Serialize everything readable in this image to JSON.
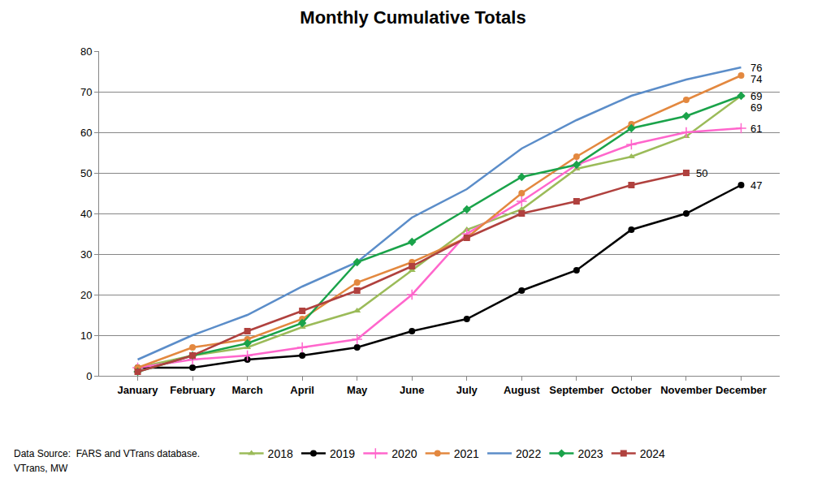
{
  "chart_data": {
    "type": "line",
    "title": "Monthly Cumulative Totals",
    "categories": [
      "January",
      "February",
      "March",
      "April",
      "May",
      "June",
      "July",
      "August",
      "September",
      "October",
      "November",
      "December"
    ],
    "series": [
      {
        "name": "2018",
        "color": "#9BBB59",
        "marker": "triangle-up",
        "values": [
          2,
          5,
          7,
          12,
          16,
          26,
          36,
          41,
          51,
          54,
          59,
          69
        ],
        "value_labels": [
          null,
          null,
          null,
          null,
          null,
          null,
          null,
          null,
          null,
          null,
          null,
          "69"
        ]
      },
      {
        "name": "2019",
        "color": "#000000",
        "marker": "circle",
        "values": [
          2,
          2,
          4,
          5,
          7,
          11,
          14,
          21,
          26,
          36,
          40,
          47
        ],
        "value_labels": [
          null,
          null,
          null,
          null,
          null,
          null,
          null,
          null,
          null,
          null,
          null,
          "47"
        ]
      },
      {
        "name": "2020",
        "color": "#FF66CC",
        "marker": "cross-thin",
        "values": [
          2,
          4,
          5,
          7,
          9,
          20,
          35,
          43,
          52,
          57,
          60,
          61
        ],
        "value_labels": [
          null,
          null,
          null,
          null,
          null,
          null,
          null,
          null,
          null,
          null,
          null,
          "61"
        ]
      },
      {
        "name": "2021",
        "color": "#E3883F",
        "marker": "circle",
        "values": [
          2,
          7,
          9,
          14,
          23,
          28,
          34,
          45,
          54,
          62,
          68,
          74
        ],
        "value_labels": [
          null,
          null,
          null,
          null,
          null,
          null,
          null,
          null,
          null,
          null,
          null,
          "74"
        ]
      },
      {
        "name": "2022",
        "color": "#5B8DC9",
        "marker": "none",
        "values": [
          4,
          10,
          15,
          22,
          28,
          39,
          46,
          56,
          63,
          69,
          73,
          76
        ],
        "value_labels": [
          null,
          null,
          null,
          null,
          null,
          null,
          null,
          null,
          null,
          null,
          null,
          "76"
        ]
      },
      {
        "name": "2023",
        "color": "#1AA34A",
        "marker": "diamond",
        "values": [
          1,
          5,
          8,
          13,
          28,
          33,
          41,
          49,
          52,
          61,
          64,
          69
        ],
        "value_labels": [
          null,
          null,
          null,
          null,
          null,
          null,
          null,
          null,
          null,
          null,
          null,
          "69"
        ]
      },
      {
        "name": "2024",
        "color": "#B0413E",
        "marker": "square",
        "values": [
          1,
          5,
          11,
          16,
          21,
          27,
          34,
          40,
          43,
          47,
          50,
          null
        ],
        "value_labels": [
          null,
          null,
          null,
          null,
          null,
          null,
          null,
          null,
          null,
          null,
          "50",
          null
        ]
      }
    ],
    "ylim": [
      0,
      80
    ],
    "yticks": [
      0,
      10,
      20,
      30,
      40,
      50,
      60,
      70,
      80
    ],
    "grid": true,
    "legend": "bottom",
    "annotations": [
      "Data Source:  FARS and VTrans database.",
      "VTrans, MW"
    ]
  }
}
